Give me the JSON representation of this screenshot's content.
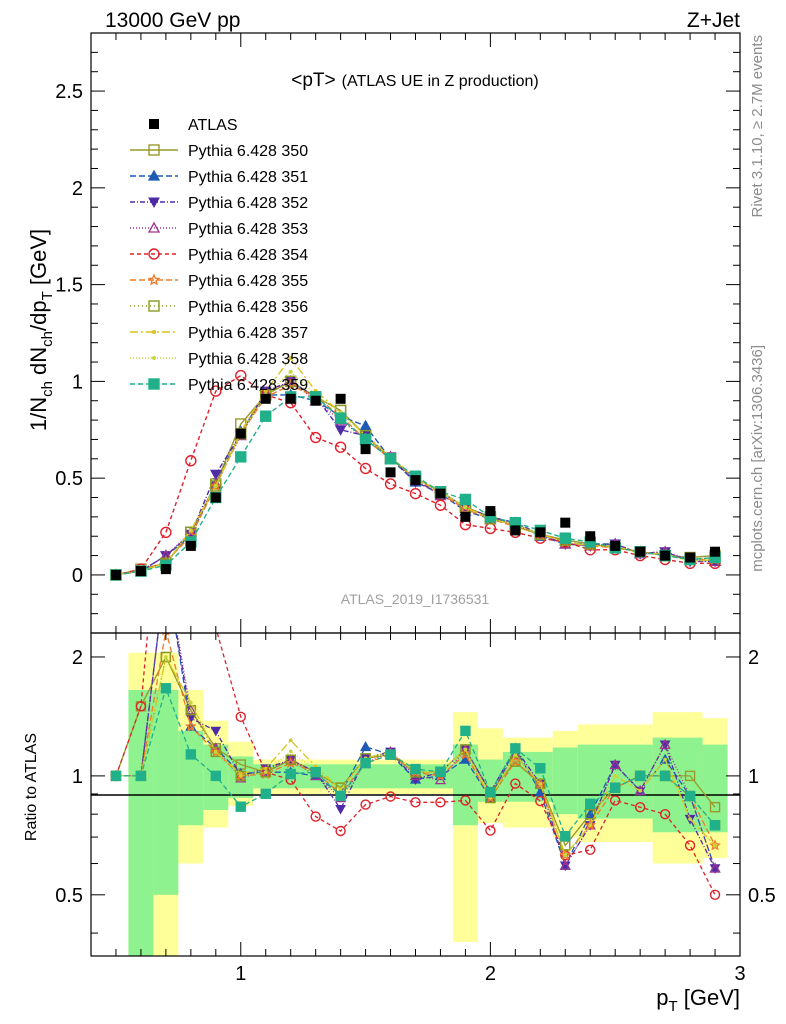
{
  "header": {
    "left": "13000 GeV pp",
    "right": "Z+Jet",
    "plot_title_main": "<pT>",
    "plot_title_sub": "(ATLAS UE in Z production)",
    "analysis": "ATLAS_2019_I1736531",
    "side_top": "Rivet 3.1.10, ≥ 2.7M events",
    "side_bottom": "mcplots.cern.ch [arXiv:1306.3436]"
  },
  "colors": {
    "data": "#000000",
    "band_inner": "#8ef28e",
    "band_outer": "#ffff99"
  },
  "chart_data": {
    "type": "line",
    "xlabel": "p_T [GeV]",
    "ylabel": "1/N_ch dN_ch/dp_T [GeV]",
    "ratio_ylabel": "Ratio to ATLAS",
    "xlim": [
      0.4,
      3.0
    ],
    "ylim": [
      -0.3,
      2.8
    ],
    "ratio_ylim": [
      0.35,
      2.3
    ],
    "x": [
      0.5,
      0.6,
      0.7,
      0.8,
      0.9,
      1.0,
      1.1,
      1.2,
      1.3,
      1.4,
      1.5,
      1.6,
      1.7,
      1.8,
      1.9,
      2.0,
      2.1,
      2.2,
      2.3,
      2.4,
      2.5,
      2.6,
      2.7,
      2.8,
      2.9
    ],
    "x_ticks": [
      1,
      2,
      3
    ],
    "y_ticks": [
      0,
      0.5,
      1,
      1.5,
      2,
      2.5
    ],
    "ratio_ticks": [
      0.5,
      1,
      2
    ],
    "data": {
      "name": "ATLAS",
      "values": [
        0.0,
        0.02,
        0.03,
        0.15,
        0.4,
        0.73,
        0.91,
        0.91,
        0.9,
        0.91,
        0.65,
        0.53,
        0.49,
        0.42,
        0.3,
        0.33,
        0.23,
        0.22,
        0.27,
        0.2,
        0.15,
        0.12,
        0.1,
        0.09,
        0.12
      ]
    },
    "ratio_band": {
      "inner": [
        [
          0.55,
          0.65,
          0.3,
          1.65
        ],
        [
          0.65,
          0.75,
          0.5,
          1.65
        ],
        [
          0.75,
          0.85,
          0.75,
          1.3
        ],
        [
          0.85,
          0.95,
          0.82,
          1.2
        ],
        [
          0.95,
          1.05,
          0.88,
          1.12
        ],
        [
          1.05,
          1.85,
          0.93,
          1.07
        ],
        [
          1.85,
          1.95,
          0.75,
          1.2
        ],
        [
          1.95,
          2.05,
          0.86,
          1.1
        ],
        [
          2.05,
          2.25,
          0.86,
          1.15
        ],
        [
          2.25,
          2.35,
          0.8,
          1.18
        ],
        [
          2.35,
          2.65,
          0.78,
          1.2
        ],
        [
          2.65,
          2.85,
          0.72,
          1.25
        ],
        [
          2.85,
          2.95,
          0.72,
          1.2
        ]
      ],
      "outer": [
        [
          0.55,
          0.65,
          0.25,
          2.05
        ],
        [
          0.65,
          0.75,
          0.3,
          2.05
        ],
        [
          0.75,
          0.85,
          0.6,
          1.65
        ],
        [
          0.85,
          0.95,
          0.74,
          1.38
        ],
        [
          0.95,
          1.05,
          0.84,
          1.22
        ],
        [
          1.05,
          1.85,
          0.9,
          1.1
        ],
        [
          1.85,
          1.95,
          0.38,
          1.45
        ],
        [
          1.95,
          2.05,
          0.76,
          1.32
        ],
        [
          2.05,
          2.25,
          0.74,
          1.25
        ],
        [
          2.25,
          2.35,
          0.7,
          1.3
        ],
        [
          2.35,
          2.65,
          0.68,
          1.35
        ],
        [
          2.65,
          2.85,
          0.6,
          1.45
        ],
        [
          2.85,
          2.95,
          0.62,
          1.4
        ]
      ]
    },
    "series": [
      {
        "name": "Pythia 6.428 350",
        "color": "#9a9a2a",
        "dash": "",
        "marker": "square-open",
        "values": [
          0.0,
          0.03,
          0.06,
          0.22,
          0.47,
          0.78,
          0.93,
          1.0,
          0.92,
          0.85,
          0.72,
          0.6,
          0.5,
          0.43,
          0.35,
          0.3,
          0.25,
          0.21,
          0.18,
          0.16,
          0.14,
          0.12,
          0.1,
          0.09,
          0.1
        ]
      },
      {
        "name": "Pythia 6.428 351",
        "color": "#1f5bb5",
        "dash": "6,3",
        "marker": "tri-up",
        "values": [
          0.0,
          0.02,
          0.1,
          0.2,
          0.47,
          0.74,
          0.93,
          0.93,
          0.9,
          0.82,
          0.77,
          0.6,
          0.48,
          0.42,
          0.33,
          0.29,
          0.27,
          0.2,
          0.16,
          0.16,
          0.16,
          0.11,
          0.11,
          0.08,
          0.07
        ]
      },
      {
        "name": "Pythia 6.428 352",
        "color": "#4f2aa6",
        "dash": "5,2,1,2",
        "marker": "tri-down",
        "values": [
          0.0,
          0.02,
          0.1,
          0.21,
          0.52,
          0.73,
          0.95,
          1.0,
          0.92,
          0.75,
          0.72,
          0.61,
          0.48,
          0.43,
          0.35,
          0.3,
          0.27,
          0.21,
          0.16,
          0.15,
          0.16,
          0.11,
          0.12,
          0.07,
          0.07
        ]
      },
      {
        "name": "Pythia 6.428 353",
        "color": "#a2328f",
        "dash": "1,2",
        "marker": "tri-open",
        "values": [
          0.0,
          0.02,
          0.1,
          0.22,
          0.47,
          0.72,
          0.94,
          1.0,
          0.9,
          0.8,
          0.7,
          0.61,
          0.49,
          0.41,
          0.35,
          0.3,
          0.26,
          0.21,
          0.16,
          0.15,
          0.16,
          0.11,
          0.12,
          0.08,
          0.07
        ]
      },
      {
        "name": "Pythia 6.428 354",
        "color": "#e0202a",
        "dash": "4,3",
        "marker": "circle-open",
        "values": [
          0.0,
          0.03,
          0.22,
          0.59,
          0.95,
          1.03,
          0.93,
          0.89,
          0.71,
          0.66,
          0.55,
          0.47,
          0.42,
          0.36,
          0.26,
          0.24,
          0.22,
          0.19,
          0.17,
          0.13,
          0.13,
          0.1,
          0.08,
          0.06,
          0.06
        ]
      },
      {
        "name": "Pythia 6.428 355",
        "color": "#f07a2a",
        "dash": "6,3",
        "marker": "star",
        "values": [
          0.0,
          0.02,
          0.07,
          0.2,
          0.46,
          0.73,
          0.92,
          0.98,
          0.92,
          0.82,
          0.7,
          0.6,
          0.5,
          0.42,
          0.34,
          0.29,
          0.25,
          0.21,
          0.17,
          0.15,
          0.14,
          0.12,
          0.1,
          0.08,
          0.08
        ]
      },
      {
        "name": "Pythia 6.428 356",
        "color": "#8a9a20",
        "dash": "1,3",
        "marker": "square-open",
        "values": [
          0.0,
          0.02,
          0.06,
          0.22,
          0.46,
          0.73,
          0.93,
          1.0,
          0.92,
          0.85,
          0.72,
          0.6,
          0.5,
          0.43,
          0.35,
          0.29,
          0.25,
          0.21,
          0.18,
          0.16,
          0.14,
          0.12,
          0.1,
          0.08,
          0.09
        ]
      },
      {
        "name": "Pythia 6.428 357",
        "color": "#d8c21a",
        "dash": "8,3,2,3",
        "marker": "dot",
        "values": [
          0.0,
          0.02,
          0.06,
          0.23,
          0.46,
          0.74,
          0.95,
          1.12,
          0.95,
          0.84,
          0.72,
          0.61,
          0.5,
          0.43,
          0.35,
          0.29,
          0.26,
          0.21,
          0.17,
          0.15,
          0.15,
          0.11,
          0.11,
          0.07,
          0.08
        ]
      },
      {
        "name": "Pythia 6.428 358",
        "color": "#c8d83a",
        "dash": "1,2",
        "marker": "dot",
        "values": [
          0.0,
          0.02,
          0.06,
          0.23,
          0.46,
          0.73,
          0.93,
          1.05,
          0.93,
          0.84,
          0.72,
          0.61,
          0.5,
          0.43,
          0.35,
          0.29,
          0.26,
          0.21,
          0.17,
          0.15,
          0.15,
          0.11,
          0.11,
          0.07,
          0.08
        ]
      },
      {
        "name": "Pythia 6.428 359",
        "color": "#20b08a",
        "dash": "5,3",
        "marker": "square-fill",
        "values": [
          0.0,
          0.02,
          0.05,
          0.17,
          0.4,
          0.61,
          0.82,
          0.92,
          0.92,
          0.81,
          0.7,
          0.6,
          0.51,
          0.43,
          0.39,
          0.3,
          0.27,
          0.23,
          0.19,
          0.17,
          0.14,
          0.12,
          0.1,
          0.08,
          0.09
        ]
      }
    ]
  }
}
